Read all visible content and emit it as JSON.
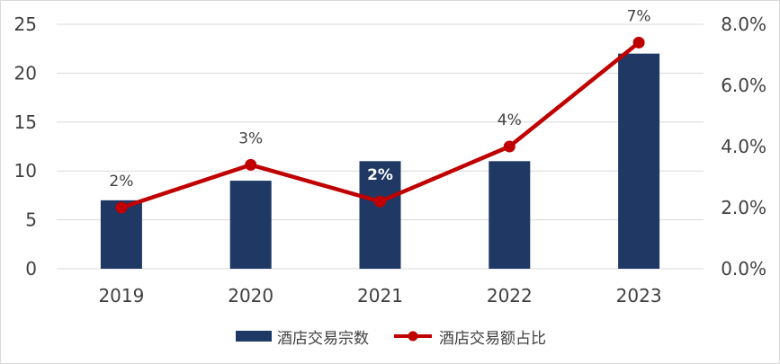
{
  "chart_data": {
    "type": "bar",
    "categories": [
      "2019",
      "2020",
      "2021",
      "2022",
      "2023"
    ],
    "series": [
      {
        "name": "酒店交易宗数",
        "type": "bar",
        "axis": "left",
        "color": "#1f3864",
        "values": [
          7,
          9,
          11,
          11,
          22
        ]
      },
      {
        "name": "酒店交易额占比",
        "type": "line",
        "axis": "right",
        "color": "#c00000",
        "values": [
          0.02,
          0.034,
          0.022,
          0.04,
          0.074
        ],
        "data_labels": [
          "2%",
          "3%",
          "2%",
          "4%",
          "7%"
        ]
      }
    ],
    "y_left": {
      "min": 0,
      "max": 25,
      "ticks": [
        0,
        5,
        10,
        15,
        20,
        25
      ],
      "tick_labels": [
        "0",
        "5",
        "10",
        "15",
        "20",
        "25"
      ]
    },
    "y_right": {
      "min": 0,
      "max": 0.08,
      "ticks": [
        0,
        0.02,
        0.04,
        0.06,
        0.08
      ],
      "tick_labels": [
        "0.0%",
        "2.0%",
        "4.0%",
        "6.0%",
        "8.0%"
      ]
    },
    "gridlines": true,
    "legend_position": "bottom",
    "title": "",
    "xlabel": "",
    "ylabel": ""
  }
}
